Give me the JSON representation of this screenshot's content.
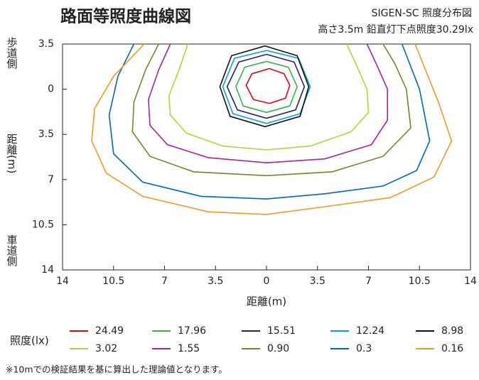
{
  "chart_data": {
    "type": "contour",
    "title": "路面等照度曲線図",
    "subtitle": "SIGEN-SC 照度分布図",
    "subtitle2": "高さ3.5m  鉛直灯下点照度30.29lx",
    "xlabel": "距離(m)",
    "ylabel": "距離(m)",
    "y_top_label": "歩道側",
    "y_bottom_label": "車道側",
    "legend_title": "照度(lx)",
    "footnote": "※10mでの検証結果を基に算出した理論値となります。",
    "xlim": [
      -14,
      14
    ],
    "xticks": [
      {
        "value": -14,
        "label": "14"
      },
      {
        "value": -10.5,
        "label": "10.5"
      },
      {
        "value": -7,
        "label": "7"
      },
      {
        "value": -3.5,
        "label": "3.5"
      },
      0,
      3.5,
      7,
      10.5,
      14
    ],
    "ylim": [
      14,
      -3.5
    ],
    "yticks": [
      {
        "value": -3.5,
        "label": "3.5"
      },
      0,
      3.5,
      7,
      10.5,
      14
    ],
    "series": [
      {
        "name": "24.49",
        "color": "#e60012",
        "x": [
          0.2,
          1.2,
          1.6,
          1.3,
          0.2,
          -0.9,
          -1.4,
          -1,
          0.2
        ],
        "values": [
          -1.6,
          -1.2,
          -0.3,
          0.7,
          1.1,
          0.8,
          -0.3,
          -1.2,
          -1.6
        ]
      },
      {
        "name": "17.96",
        "color": "#3cb043",
        "x": [
          0,
          1.5,
          2.1,
          1.6,
          0,
          -1.6,
          -2.1,
          -1.5,
          0
        ],
        "values": [
          -2.15,
          -1.7,
          -0.2,
          1.3,
          1.8,
          1.3,
          -0.2,
          -1.7,
          -2.15
        ]
      },
      {
        "name": "15.51",
        "color": "#2a1f6e",
        "x": [
          0,
          1.9,
          2.6,
          2,
          0,
          -2,
          -2.7,
          -1.9,
          0
        ],
        "values": [
          -2.7,
          -2.1,
          -0.2,
          1.6,
          2.25,
          1.6,
          -0.2,
          -2.1,
          -2.7
        ]
      },
      {
        "name": "12.24",
        "color": "#00a0e0",
        "x": [
          0,
          2.2,
          3,
          2.3,
          0,
          -2.3,
          -3,
          -2.2,
          0
        ],
        "values": [
          -3,
          -2.4,
          -0.2,
          1.9,
          2.65,
          1.9,
          -0.2,
          -2.4,
          -3
        ]
      },
      {
        "name": "8.98",
        "color": "#111111",
        "x": [
          -0.1,
          2.1,
          2.9,
          2.3,
          -0.1,
          -2.5,
          -3.2,
          -2.4,
          -0.1
        ],
        "values": [
          -3.35,
          -2.6,
          -0.2,
          2.1,
          2.9,
          2.1,
          -0.2,
          -2.6,
          -3.35
        ]
      },
      {
        "name": "3.02",
        "color": "#b5d334",
        "x": [
          -5.4,
          -6,
          -6.7,
          -6.6,
          -5.5,
          -3,
          0,
          3,
          5.8,
          7,
          6.9,
          6.2,
          5.5
        ],
        "values": [
          -3.5,
          -1.5,
          0.5,
          2,
          3.4,
          4.4,
          4.7,
          4.4,
          3.3,
          1.8,
          0,
          -1.8,
          -3.5
        ]
      },
      {
        "name": "1.55",
        "color": "#a4249c",
        "x": [
          -6.6,
          -7.4,
          -8.1,
          -8,
          -6.8,
          -4,
          0,
          4,
          7.2,
          8.3,
          8.3,
          7.6,
          6.9
        ],
        "values": [
          -3.5,
          -1.5,
          0.8,
          2.8,
          4.3,
          5.3,
          5.7,
          5.4,
          4.3,
          2.4,
          0,
          -1.8,
          -3.5
        ]
      },
      {
        "name": "0.90",
        "color": "#76862a",
        "x": [
          -7.4,
          -8.3,
          -9.1,
          -9.2,
          -8,
          -5,
          0,
          4.5,
          8,
          9.9,
          9.6,
          8.8,
          8
        ],
        "values": [
          -3.5,
          -1.5,
          1,
          3.3,
          5.2,
          6.4,
          6.7,
          6.4,
          5.2,
          3,
          0,
          -2,
          -3.5
        ]
      },
      {
        "name": "0.3",
        "color": "#0068b7",
        "x": [
          -9.1,
          -10.2,
          -10.8,
          -10.5,
          -8.5,
          -4.5,
          0,
          4,
          8,
          10.3,
          11.2,
          10.5,
          9.3
        ],
        "values": [
          -3.5,
          -1,
          2,
          5,
          7.2,
          8.3,
          8.5,
          8.1,
          7.5,
          6.3,
          4,
          0,
          -3.5
        ]
      },
      {
        "name": "0.16",
        "color": "#f39a1e",
        "x": [
          -8.4,
          -10.5,
          -11.8,
          -12,
          -11,
          -8.5,
          -4,
          0,
          4,
          8.5,
          11.5,
          12.7,
          11.8,
          10.2
        ],
        "values": [
          -3.5,
          -1,
          1.5,
          4,
          6.5,
          8.3,
          9.5,
          9.7,
          9.1,
          8.4,
          6.8,
          4,
          1,
          -3.5
        ]
      }
    ]
  }
}
